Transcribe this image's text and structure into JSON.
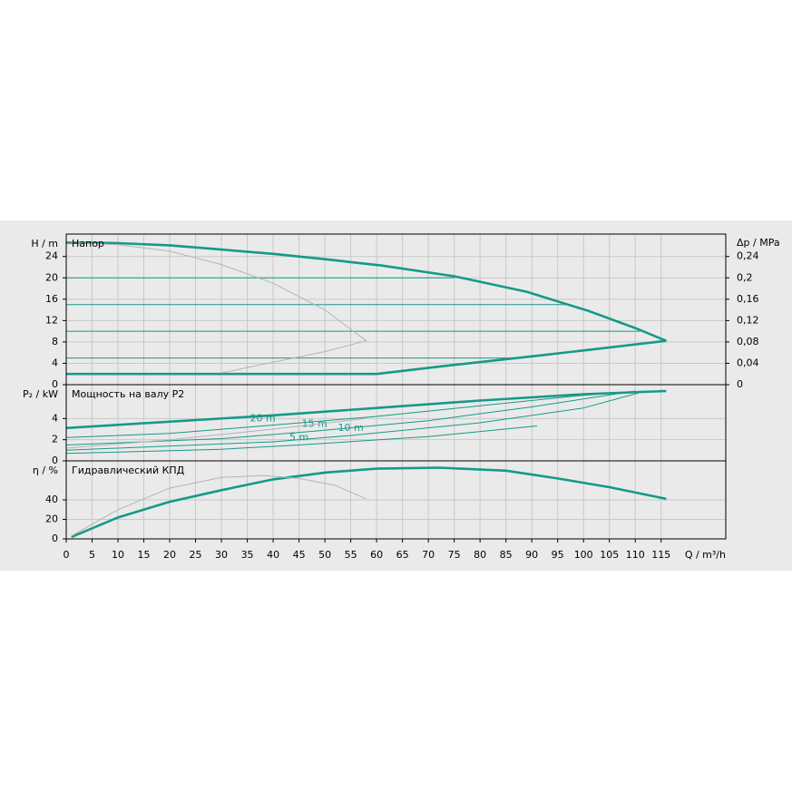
{
  "chart_data": [
    {
      "type": "line",
      "title": "Напор",
      "y_label": "H / m",
      "y2_label": "Δp / MPa",
      "xlim": [
        0,
        127.5
      ],
      "ylim": [
        0,
        28.2
      ],
      "yticks": [
        0,
        4,
        8,
        12,
        16,
        20,
        24
      ],
      "y2lim": [
        0,
        0.282
      ],
      "y2ticks": [
        0,
        {
          "value": 0.04,
          "label": "0,04"
        },
        {
          "value": 0.08,
          "label": "0,08"
        },
        {
          "value": 0.12,
          "label": "0,12"
        },
        {
          "value": 0.16,
          "label": "0,16"
        },
        {
          "value": 0.2,
          "label": "0,2"
        },
        {
          "value": 0.24,
          "label": "0,24"
        }
      ],
      "grid": true,
      "series": [
        {
          "color": "#16998a",
          "thick": true,
          "x": [
            0,
            10,
            20,
            30,
            40,
            50,
            61,
            75,
            89,
            101,
            110,
            116
          ],
          "values": [
            26.6,
            26.5,
            26.1,
            25.3,
            24.5,
            23.5,
            22.3,
            20.3,
            17.4,
            13.8,
            10.6,
            8.2
          ]
        },
        {
          "color": "#16998a",
          "thick": true,
          "x": [
            0,
            60,
            75,
            90,
            100,
            116
          ],
          "values": [
            2,
            2,
            3.7,
            5.3,
            6.4,
            8.2
          ]
        },
        {
          "color": "#16998a",
          "thick": false,
          "x": [
            0,
            75
          ],
          "values": [
            20,
            20
          ]
        },
        {
          "color": "#16998a",
          "thick": false,
          "x": [
            0,
            97
          ],
          "values": [
            15,
            15
          ]
        },
        {
          "color": "#16998a",
          "thick": false,
          "x": [
            0,
            111
          ],
          "values": [
            10,
            10
          ]
        },
        {
          "color": "#16998a",
          "thick": false,
          "x": [
            0,
            87
          ],
          "values": [
            5,
            5
          ]
        },
        {
          "color": "#b4b4b4",
          "thick": false,
          "x": [
            1,
            10,
            20,
            30,
            40,
            50,
            58,
            50,
            40,
            30
          ],
          "values": [
            26.6,
            26.2,
            25,
            22.5,
            19,
            14,
            8.2,
            6.2,
            4.2,
            2.2
          ]
        }
      ]
    },
    {
      "type": "line",
      "title": "Мощность на валу P2",
      "y_label": "P₂ / kW",
      "xlim": [
        0,
        127.5
      ],
      "ylim": [
        0,
        7.2
      ],
      "yticks": [
        0,
        2,
        4
      ],
      "grid": true,
      "series": [
        {
          "color": "#16998a",
          "thick": true,
          "x": [
            0,
            20,
            40,
            60,
            80,
            100,
            116
          ],
          "values": [
            3.1,
            3.7,
            4.3,
            5.0,
            5.7,
            6.3,
            6.6
          ]
        },
        {
          "name": "20 m",
          "color": "#16998a",
          "thick": false,
          "x": [
            0,
            20,
            38,
            60,
            80,
            100,
            112
          ],
          "values": [
            2.2,
            2.6,
            3.3,
            4.2,
            5.2,
            6.2,
            6.6
          ]
        },
        {
          "name": "15 m",
          "color": "#16998a",
          "thick": false,
          "x": [
            0,
            30,
            48,
            70,
            90,
            110
          ],
          "values": [
            1.5,
            2.1,
            2.8,
            3.8,
            5.1,
            6.6
          ]
        },
        {
          "name": "10 m",
          "color": "#16998a",
          "thick": false,
          "x": [
            0,
            40,
            55,
            80,
            100,
            112
          ],
          "values": [
            1.0,
            1.8,
            2.4,
            3.6,
            5.0,
            6.6
          ]
        },
        {
          "name": "5 m",
          "color": "#16998a",
          "thick": false,
          "x": [
            0,
            30,
            45,
            70,
            91
          ],
          "values": [
            0.7,
            1.1,
            1.5,
            2.3,
            3.3
          ]
        },
        {
          "color": "#b4b4b4",
          "thick": false,
          "x": [
            0,
            20,
            40,
            58
          ],
          "values": [
            1.2,
            2.0,
            3.0,
            4.0
          ]
        }
      ]
    },
    {
      "type": "line",
      "title": "Гидравлический КПД",
      "y_label": "η / %",
      "x_label": "Q / m³/h",
      "xlim": [
        0,
        127.5
      ],
      "ylim": [
        0,
        80
      ],
      "yticks": [
        0,
        20,
        40
      ],
      "xticks": [
        0,
        5,
        10,
        15,
        20,
        25,
        30,
        35,
        40,
        45,
        50,
        55,
        60,
        65,
        70,
        75,
        80,
        85,
        90,
        95,
        100,
        105,
        110,
        115
      ],
      "grid": true,
      "series": [
        {
          "color": "#16998a",
          "thick": true,
          "x": [
            1,
            10,
            20,
            30,
            40,
            50,
            60,
            72,
            85,
            95,
            105,
            116
          ],
          "values": [
            2,
            22,
            38,
            50,
            61,
            68,
            72,
            73,
            70,
            62,
            53,
            41
          ]
        },
        {
          "color": "#b4b4b4",
          "thick": false,
          "x": [
            1,
            10,
            20,
            30,
            38,
            45,
            52,
            58
          ],
          "values": [
            3,
            30,
            52,
            63,
            65,
            62,
            55,
            41
          ]
        }
      ]
    }
  ]
}
